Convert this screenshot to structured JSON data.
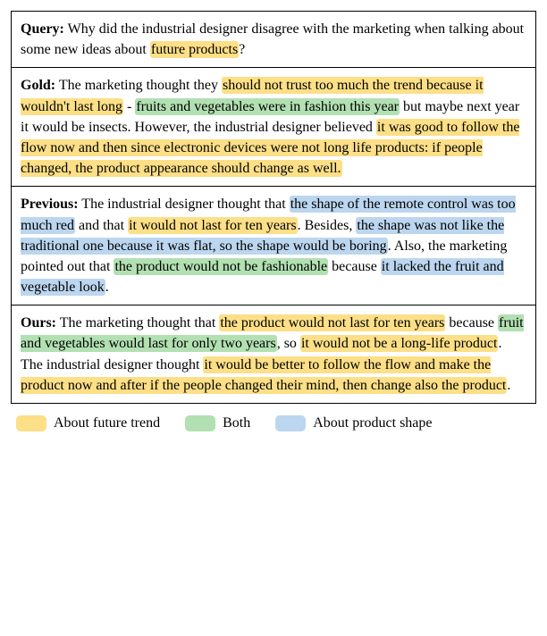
{
  "colors": {
    "trend": "#fcdf87",
    "both": "#b2e0b2",
    "shape": "#bcd6ef",
    "border": "#000000",
    "bg": "#ffffff",
    "text": "#000000"
  },
  "font": {
    "family": "Times New Roman",
    "base_size_pt": 12,
    "line_height": 1.45
  },
  "rows": [
    {
      "label": "Query:",
      "segments": [
        {
          "text": " Why did the industrial designer disagree with the marketing when talking about some new ideas about "
        },
        {
          "text": "future products",
          "hl": "trend"
        },
        {
          "text": "?"
        }
      ]
    },
    {
      "label": "Gold:",
      "segments": [
        {
          "text": " The marketing thought they "
        },
        {
          "text": "should not trust too much the trend because it wouldn't last long",
          "hl": "trend"
        },
        {
          "text": " - "
        },
        {
          "text": "fruits and vegetables were in fashion this year",
          "hl": "both"
        },
        {
          "text": " but maybe next year it would be insects. However, the industrial designer believed "
        },
        {
          "text": "it was good to follow the flow now and then since electronic devices were not long life products: if people changed, the product appearance should change as well.",
          "hl": "trend"
        }
      ]
    },
    {
      "label": "Previous:",
      "segments": [
        {
          "text": " The industrial designer thought that "
        },
        {
          "text": "the shape of the remote control was too much red",
          "hl": "shape"
        },
        {
          "text": " and that "
        },
        {
          "text": "it would not last for ten years",
          "hl": "trend"
        },
        {
          "text": ". Besides, "
        },
        {
          "text": "the shape was not like the traditional one because it was flat, so the shape would be boring",
          "hl": "shape"
        },
        {
          "text": ". Also, the marketing pointed out that "
        },
        {
          "text": "the product would not be fashionable",
          "hl": "both"
        },
        {
          "text": " because "
        },
        {
          "text": "it lacked the fruit and vegetable look",
          "hl": "shape"
        },
        {
          "text": "."
        }
      ]
    },
    {
      "label": "Ours:",
      "segments": [
        {
          "text": " The marketing thought that "
        },
        {
          "text": "the product would not last for ten years",
          "hl": "trend"
        },
        {
          "text": " because "
        },
        {
          "text": "fruit and vegetables would last for only two years",
          "hl": "both"
        },
        {
          "text": ", so "
        },
        {
          "text": "it would not be a long-life product",
          "hl": "trend"
        },
        {
          "text": ". The industrial designer thought "
        },
        {
          "text": "it would be better to follow the flow and make the product now and after if the people changed their mind, then change also the product",
          "hl": "trend"
        },
        {
          "text": "."
        }
      ]
    }
  ],
  "legend": [
    {
      "color_key": "trend",
      "label": "About future trend"
    },
    {
      "color_key": "both",
      "label": "Both"
    },
    {
      "color_key": "shape",
      "label": "About product shape"
    }
  ]
}
